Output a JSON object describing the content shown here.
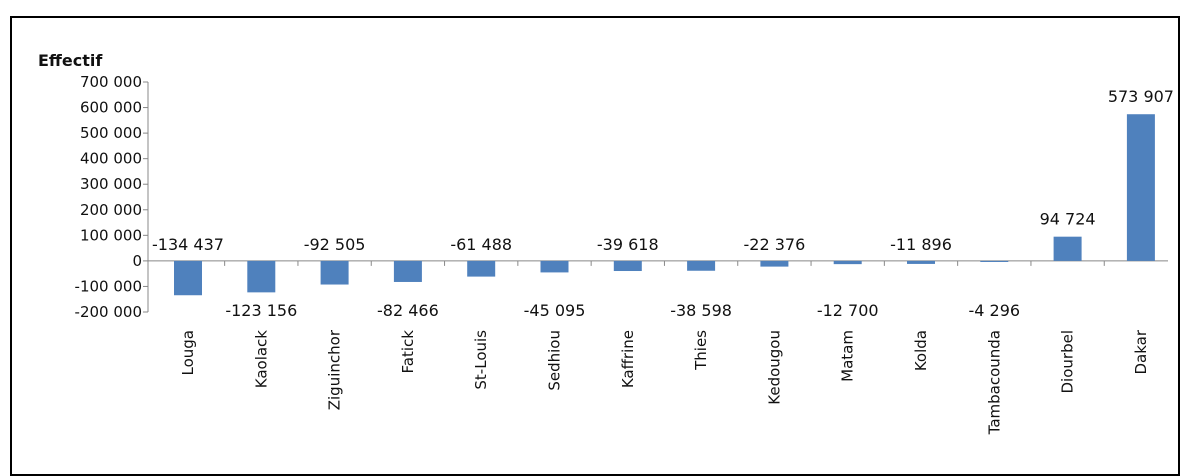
{
  "chart_data": {
    "type": "bar",
    "ylabel": "Effectif",
    "categories": [
      "Louga",
      "Kaolack",
      "Ziguinchor",
      "Fatick",
      "St-Louis",
      "Sedhiou",
      "Kaffrine",
      "Thies",
      "Kedougou",
      "Matam",
      "Kolda",
      "Tambacounda",
      "Diourbel",
      "Dakar"
    ],
    "values": [
      -134437,
      -123156,
      -92505,
      -82466,
      -61488,
      -45095,
      -39618,
      -38598,
      -22376,
      -12700,
      -11896,
      -4296,
      94724,
      573907
    ],
    "data_labels": [
      "-134 437",
      "-123 156",
      "-92 505",
      "-82 466",
      "-61 488",
      "-45 095",
      "-39 618",
      "-38 598",
      "-22 376",
      "-12 700",
      "-11 896",
      "-4 296",
      "94 724",
      "573 907"
    ],
    "ylim": [
      -200000,
      700000
    ],
    "yticks": [
      700000,
      600000,
      500000,
      400000,
      300000,
      200000,
      100000,
      0,
      -100000,
      -200000
    ],
    "ytick_labels": [
      "700 000",
      "600 000",
      "500 000",
      "400 000",
      "300 000",
      "200 000",
      "100 000",
      "0",
      "-100 000",
      "-200 000"
    ],
    "bar_color": "#4f81bd",
    "grid": false,
    "legend": "none"
  }
}
